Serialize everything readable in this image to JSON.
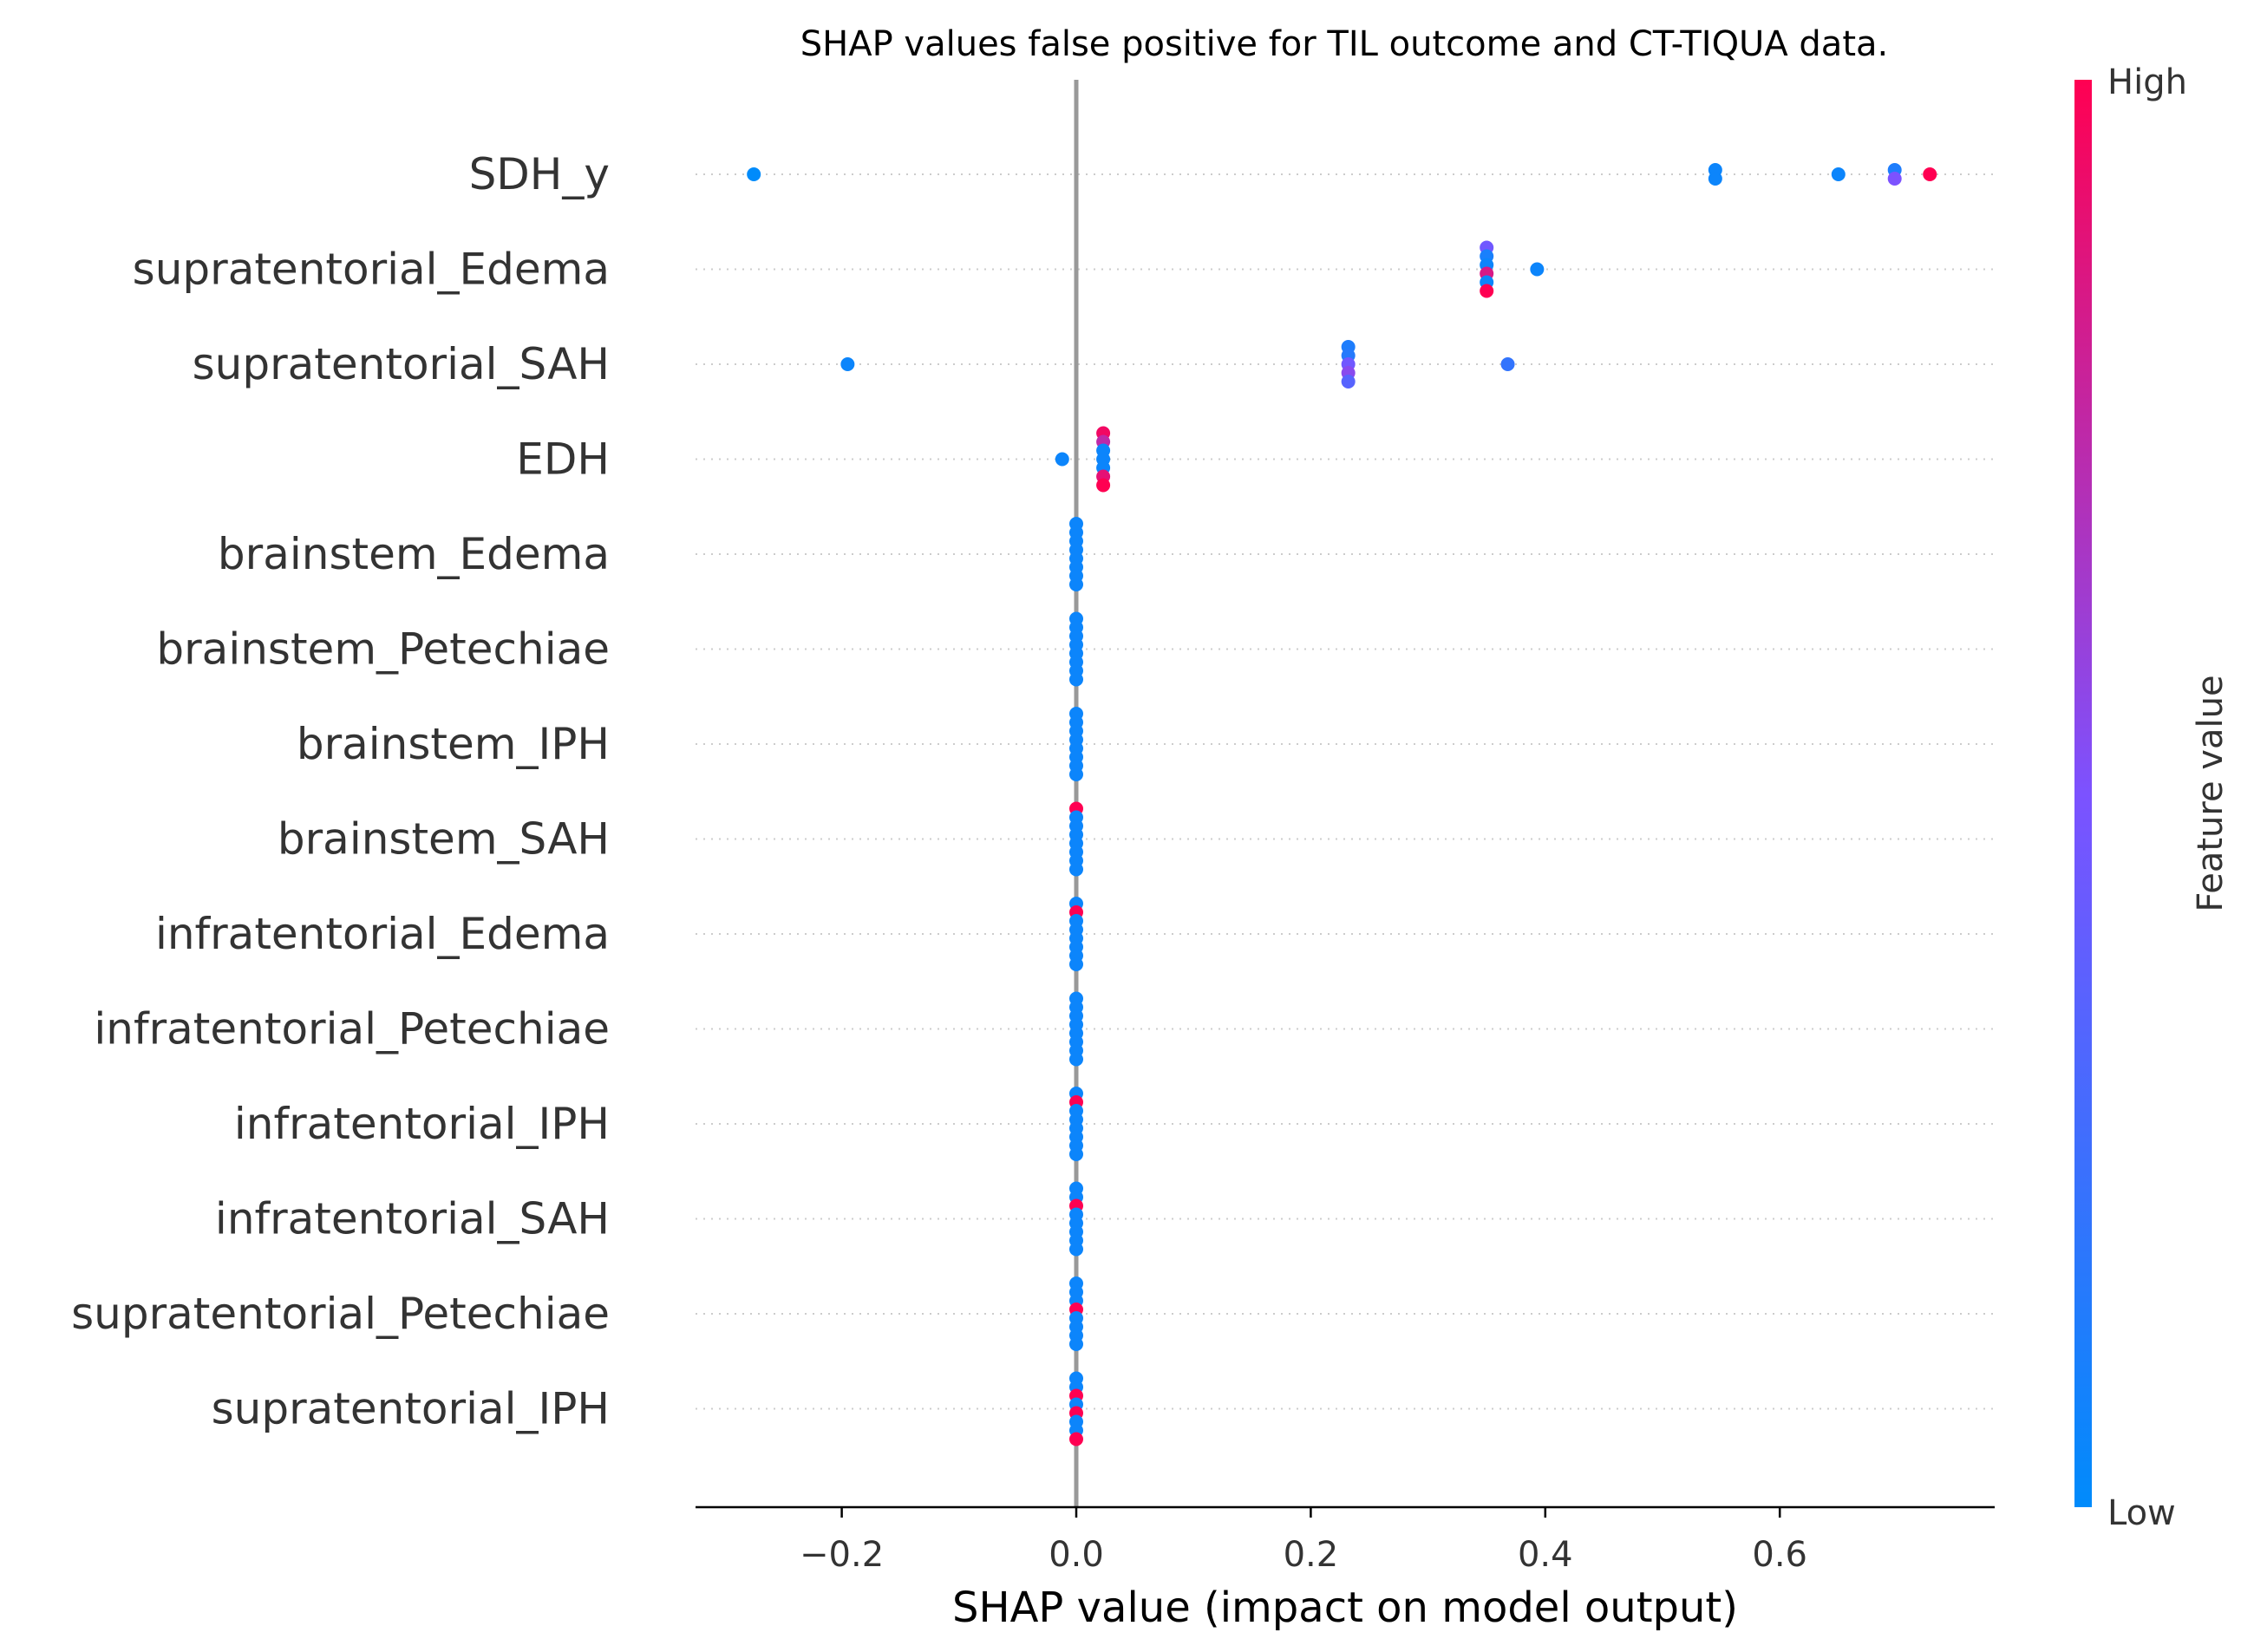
{
  "chart_data": {
    "type": "scatter",
    "title": "SHAP values false positive for TIL outcome and CT-TIQUA data.",
    "xlabel": "SHAP value (impact on model output)",
    "ylabel": "",
    "xlim": [
      -0.325,
      0.78
    ],
    "x_ticks": [
      -0.2,
      0.0,
      0.2,
      0.4,
      0.6
    ],
    "x_tick_labels": [
      "−0.2",
      "0.0",
      "0.2",
      "0.4",
      "0.6"
    ],
    "grid": "horizontal dotted lines per feature",
    "colorbar": {
      "label": "Feature value",
      "high_label": "High",
      "low_label": "Low",
      "low_color": "#008bfb",
      "mid_color": "#7c52ff",
      "high_color": "#ff0052"
    },
    "features": [
      {
        "name": "SDH_y",
        "points": [
          {
            "x": -0.275,
            "v": 0.0
          },
          {
            "x": 0.545,
            "v": 0.05
          },
          {
            "x": 0.545,
            "v": 0.05
          },
          {
            "x": 0.65,
            "v": 0.05
          },
          {
            "x": 0.698,
            "v": 0.12
          },
          {
            "x": 0.698,
            "v": 0.5
          },
          {
            "x": 0.728,
            "v": 1.0
          }
        ]
      },
      {
        "name": "supratentorial_Edema",
        "points": [
          {
            "x": 0.35,
            "v": 0.45
          },
          {
            "x": 0.35,
            "v": 0.1
          },
          {
            "x": 0.35,
            "v": 0.05
          },
          {
            "x": 0.35,
            "v": 0.85
          },
          {
            "x": 0.35,
            "v": 0.05
          },
          {
            "x": 0.35,
            "v": 1.0
          },
          {
            "x": 0.393,
            "v": 0.05
          }
        ]
      },
      {
        "name": "supratentorial_SAH",
        "points": [
          {
            "x": -0.195,
            "v": 0.05
          },
          {
            "x": 0.232,
            "v": 0.12
          },
          {
            "x": 0.232,
            "v": 0.15
          },
          {
            "x": 0.232,
            "v": 0.45
          },
          {
            "x": 0.232,
            "v": 0.55
          },
          {
            "x": 0.232,
            "v": 0.35
          },
          {
            "x": 0.368,
            "v": 0.2
          }
        ]
      },
      {
        "name": "EDH",
        "points": [
          {
            "x": -0.012,
            "v": 0.05
          },
          {
            "x": 0.023,
            "v": 0.95
          },
          {
            "x": 0.023,
            "v": 0.75
          },
          {
            "x": 0.023,
            "v": 0.05
          },
          {
            "x": 0.023,
            "v": 0.05
          },
          {
            "x": 0.023,
            "v": 0.05
          },
          {
            "x": 0.023,
            "v": 0.9
          },
          {
            "x": 0.023,
            "v": 1.0
          }
        ]
      },
      {
        "name": "brainstem_Edema",
        "points": [
          {
            "x": 0.0,
            "v": 0.05
          },
          {
            "x": 0.0,
            "v": 0.05
          },
          {
            "x": 0.0,
            "v": 0.05
          },
          {
            "x": 0.0,
            "v": 0.05
          },
          {
            "x": 0.0,
            "v": 0.05
          },
          {
            "x": 0.0,
            "v": 0.05
          },
          {
            "x": 0.0,
            "v": 0.05
          },
          {
            "x": 0.0,
            "v": 0.05
          }
        ]
      },
      {
        "name": "brainstem_Petechiae",
        "points": [
          {
            "x": 0.0,
            "v": 0.05
          },
          {
            "x": 0.0,
            "v": 0.05
          },
          {
            "x": 0.0,
            "v": 0.05
          },
          {
            "x": 0.0,
            "v": 0.05
          },
          {
            "x": 0.0,
            "v": 0.05
          },
          {
            "x": 0.0,
            "v": 0.05
          },
          {
            "x": 0.0,
            "v": 0.05
          },
          {
            "x": 0.0,
            "v": 0.05
          }
        ]
      },
      {
        "name": "brainstem_IPH",
        "points": [
          {
            "x": 0.0,
            "v": 0.05
          },
          {
            "x": 0.0,
            "v": 0.05
          },
          {
            "x": 0.0,
            "v": 0.05
          },
          {
            "x": 0.0,
            "v": 0.05
          },
          {
            "x": 0.0,
            "v": 0.05
          },
          {
            "x": 0.0,
            "v": 0.05
          },
          {
            "x": 0.0,
            "v": 0.05
          },
          {
            "x": 0.0,
            "v": 0.05
          }
        ]
      },
      {
        "name": "brainstem_SAH",
        "points": [
          {
            "x": 0.0,
            "v": 1.0
          },
          {
            "x": 0.0,
            "v": 0.05
          },
          {
            "x": 0.0,
            "v": 0.05
          },
          {
            "x": 0.0,
            "v": 0.05
          },
          {
            "x": 0.0,
            "v": 0.05
          },
          {
            "x": 0.0,
            "v": 0.05
          },
          {
            "x": 0.0,
            "v": 0.05
          },
          {
            "x": 0.0,
            "v": 0.05
          }
        ]
      },
      {
        "name": "infratentorial_Edema",
        "points": [
          {
            "x": 0.0,
            "v": 0.05
          },
          {
            "x": 0.0,
            "v": 1.0
          },
          {
            "x": 0.0,
            "v": 0.05
          },
          {
            "x": 0.0,
            "v": 0.05
          },
          {
            "x": 0.0,
            "v": 0.05
          },
          {
            "x": 0.0,
            "v": 0.05
          },
          {
            "x": 0.0,
            "v": 0.05
          },
          {
            "x": 0.0,
            "v": 0.05
          }
        ]
      },
      {
        "name": "infratentorial_Petechiae",
        "points": [
          {
            "x": 0.0,
            "v": 0.05
          },
          {
            "x": 0.0,
            "v": 0.05
          },
          {
            "x": 0.0,
            "v": 0.05
          },
          {
            "x": 0.0,
            "v": 0.05
          },
          {
            "x": 0.0,
            "v": 0.05
          },
          {
            "x": 0.0,
            "v": 0.05
          },
          {
            "x": 0.0,
            "v": 0.05
          },
          {
            "x": 0.0,
            "v": 0.05
          }
        ]
      },
      {
        "name": "infratentorial_IPH",
        "points": [
          {
            "x": 0.0,
            "v": 0.05
          },
          {
            "x": 0.0,
            "v": 1.0
          },
          {
            "x": 0.0,
            "v": 0.05
          },
          {
            "x": 0.0,
            "v": 0.05
          },
          {
            "x": 0.0,
            "v": 0.05
          },
          {
            "x": 0.0,
            "v": 0.05
          },
          {
            "x": 0.0,
            "v": 0.05
          },
          {
            "x": 0.0,
            "v": 0.05
          }
        ]
      },
      {
        "name": "infratentorial_SAH",
        "points": [
          {
            "x": 0.0,
            "v": 0.05
          },
          {
            "x": 0.0,
            "v": 0.05
          },
          {
            "x": 0.0,
            "v": 1.0
          },
          {
            "x": 0.0,
            "v": 0.05
          },
          {
            "x": 0.0,
            "v": 0.05
          },
          {
            "x": 0.0,
            "v": 0.05
          },
          {
            "x": 0.0,
            "v": 0.05
          },
          {
            "x": 0.0,
            "v": 0.05
          }
        ]
      },
      {
        "name": "supratentorial_Petechiae",
        "points": [
          {
            "x": 0.0,
            "v": 0.05
          },
          {
            "x": 0.0,
            "v": 0.05
          },
          {
            "x": 0.0,
            "v": 0.05
          },
          {
            "x": 0.0,
            "v": 1.0
          },
          {
            "x": 0.0,
            "v": 0.05
          },
          {
            "x": 0.0,
            "v": 0.05
          },
          {
            "x": 0.0,
            "v": 0.05
          },
          {
            "x": 0.0,
            "v": 0.05
          }
        ]
      },
      {
        "name": "supratentorial_IPH",
        "points": [
          {
            "x": 0.0,
            "v": 0.05
          },
          {
            "x": 0.0,
            "v": 0.05
          },
          {
            "x": 0.0,
            "v": 1.0
          },
          {
            "x": 0.0,
            "v": 0.05
          },
          {
            "x": 0.0,
            "v": 1.0
          },
          {
            "x": 0.0,
            "v": 0.05
          },
          {
            "x": 0.0,
            "v": 0.05
          },
          {
            "x": 1e-09,
            "v": 1.0
          }
        ]
      }
    ]
  }
}
